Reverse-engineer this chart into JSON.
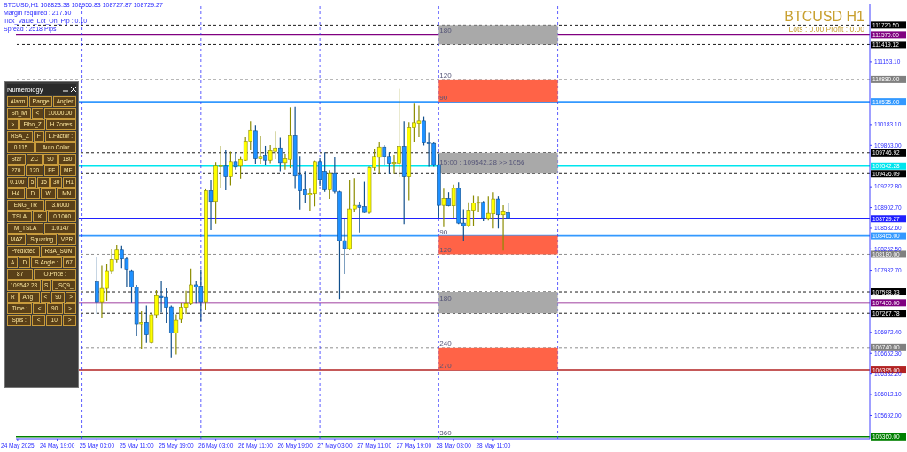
{
  "chart_data": [
    {
      "type": "candlestick",
      "title": "BTCUSD H1",
      "subtitle": "Lots : 0.00 Profit : 0.00",
      "annotations": [
        "BTCUSD,H1  108823.38 108956.83 108727.87 108729.27",
        "Margin required : 217.50",
        "Tick_Value_Lot_On_Pip : 0.10",
        "Spread : 2518  Pips",
        {
          "text": "180",
          "x": "2025-05-28T00:00",
          "y": 111570
        },
        {
          "text": "120",
          "x": "2025-05-28T00:00",
          "y": 110880
        },
        {
          "text": "90",
          "x": "2025-05-28T00:00",
          "y": 110535
        },
        {
          "text": "15:00 : 109542.28 >> 1056",
          "x": "2025-05-28T00:00",
          "y": 109542.28
        },
        {
          "text": "90",
          "x": "2025-05-28T00:00",
          "y": 108465
        },
        {
          "text": "120",
          "x": "2025-05-28T00:00",
          "y": 108180
        },
        {
          "text": "180",
          "x": "2025-05-28T00:00",
          "y": 107430
        },
        {
          "text": "240",
          "x": "2025-05-28T00:00",
          "y": 106740
        },
        {
          "text": "270",
          "x": "2025-05-28T00:00",
          "y": 106395
        },
        {
          "text": "360",
          "x": "2025-05-28T00:00",
          "y": 105360
        }
      ],
      "x": [
        "2025-05-25T03:00",
        "2025-05-25T04:00",
        "2025-05-25T05:00",
        "2025-05-25T06:00",
        "2025-05-25T07:00",
        "2025-05-25T08:00",
        "2025-05-25T09:00",
        "2025-05-25T10:00",
        "2025-05-25T11:00",
        "2025-05-25T12:00",
        "2025-05-25T13:00",
        "2025-05-25T14:00",
        "2025-05-25T15:00",
        "2025-05-25T16:00",
        "2025-05-25T17:00",
        "2025-05-25T18:00",
        "2025-05-25T19:00",
        "2025-05-25T20:00",
        "2025-05-25T21:00",
        "2025-05-25T22:00",
        "2025-05-25T23:00",
        "2025-05-26T00:00",
        "2025-05-26T01:00",
        "2025-05-26T02:00",
        "2025-05-26T03:00",
        "2025-05-26T04:00",
        "2025-05-26T05:00",
        "2025-05-26T06:00",
        "2025-05-26T07:00",
        "2025-05-26T08:00",
        "2025-05-26T09:00",
        "2025-05-26T10:00",
        "2025-05-26T11:00",
        "2025-05-26T12:00",
        "2025-05-26T13:00",
        "2025-05-26T14:00",
        "2025-05-26T15:00",
        "2025-05-26T16:00",
        "2025-05-26T17:00",
        "2025-05-26T18:00",
        "2025-05-26T19:00",
        "2025-05-26T20:00",
        "2025-05-26T21:00",
        "2025-05-26T22:00",
        "2025-05-26T23:00",
        "2025-05-27T00:00",
        "2025-05-27T01:00",
        "2025-05-27T02:00",
        "2025-05-27T03:00",
        "2025-05-27T04:00",
        "2025-05-27T05:00",
        "2025-05-27T06:00",
        "2025-05-27T07:00",
        "2025-05-27T08:00",
        "2025-05-27T09:00",
        "2025-05-27T10:00",
        "2025-05-27T11:00",
        "2025-05-27T12:00",
        "2025-05-27T13:00",
        "2025-05-27T14:00",
        "2025-05-27T15:00",
        "2025-05-27T16:00",
        "2025-05-27T17:00",
        "2025-05-27T18:00",
        "2025-05-27T19:00",
        "2025-05-27T20:00",
        "2025-05-27T21:00",
        "2025-05-27T22:00",
        "2025-05-27T23:00",
        "2025-05-28T00:00",
        "2025-05-28T01:00",
        "2025-05-28T02:00",
        "2025-05-28T03:00",
        "2025-05-28T04:00",
        "2025-05-28T05:00",
        "2025-05-28T06:00",
        "2025-05-28T07:00",
        "2025-05-28T08:00",
        "2025-05-28T09:00",
        "2025-05-28T10:00",
        "2025-05-28T11:00",
        "2025-05-28T12:00",
        "2025-05-28T13:00",
        "2025-05-28T14:00"
      ],
      "ohlc": [
        [
          107754,
          108130,
          107266,
          107447
        ],
        [
          107447,
          107994,
          107197,
          107652
        ],
        [
          107652,
          108017,
          107471,
          107926
        ],
        [
          107926,
          108253,
          107880,
          108099
        ],
        [
          108099,
          108313,
          108062,
          108244
        ],
        [
          108244,
          108303,
          107972,
          108108
        ],
        [
          108108,
          108130,
          107676,
          107949
        ],
        [
          107926,
          107935,
          107447,
          107676
        ],
        [
          107676,
          107699,
          106924,
          107106
        ],
        [
          107106,
          107289,
          106720,
          107129
        ],
        [
          107129,
          107379,
          106816,
          106934
        ],
        [
          106816,
          107266,
          106808,
          107243
        ],
        [
          107243,
          107617,
          107197,
          107539
        ],
        [
          107529,
          107754,
          107289,
          107507
        ],
        [
          107515,
          107644,
          107129,
          107357
        ],
        [
          107365,
          107379,
          106584,
          106961
        ],
        [
          106961,
          107243,
          106642,
          107160
        ],
        [
          107174,
          107425,
          107129,
          107357
        ],
        [
          107357,
          107607,
          107266,
          107416
        ],
        [
          107412,
          107949,
          107402,
          107708
        ],
        [
          107708,
          107754,
          107425,
          107676
        ],
        [
          107686,
          107935,
          107152,
          107447
        ],
        [
          107447,
          109177,
          107334,
          109164
        ],
        [
          109164,
          109314,
          108563,
          108996
        ],
        [
          108996,
          109596,
          108663,
          109542
        ],
        [
          109542,
          109846,
          109205,
          109550
        ],
        [
          109542,
          109778,
          109177,
          109382
        ],
        [
          109382,
          109755,
          109255,
          109610
        ],
        [
          109610,
          109746,
          109495,
          109528
        ],
        [
          109542,
          109686,
          109359,
          109645
        ],
        [
          109632,
          109983,
          109628,
          109928
        ],
        [
          109928,
          110225,
          109792,
          110096
        ],
        [
          110088,
          110170,
          109587,
          109655
        ],
        [
          109655,
          109997,
          109587,
          109692
        ],
        [
          109710,
          109846,
          109564,
          109632
        ],
        [
          109632,
          109860,
          109596,
          109778
        ],
        [
          109769,
          110074,
          109655,
          109823
        ],
        [
          109823,
          109974,
          109473,
          109596
        ],
        [
          109596,
          109723,
          109495,
          109655
        ],
        [
          109645,
          110442,
          109519,
          110010
        ],
        [
          110010,
          110451,
          109200,
          109392
        ],
        [
          109405,
          109692,
          108882,
          109164
        ],
        [
          109177,
          109460,
          108986,
          109100
        ],
        [
          109100,
          109187,
          108859,
          109123
        ],
        [
          109119,
          109618,
          108928,
          109610
        ],
        [
          109610,
          109655,
          109246,
          109337
        ],
        [
          109464,
          109746,
          109154,
          109177
        ],
        [
          109177,
          109473,
          109041,
          109427
        ],
        [
          109427,
          109678,
          109132,
          109154
        ],
        [
          109146,
          109154,
          107494,
          108390
        ],
        [
          108390,
          108710,
          107880,
          108268
        ],
        [
          108268,
          109323,
          108253,
          108882
        ],
        [
          108882,
          109351,
          108837,
          108936
        ],
        [
          108936,
          108983,
          108527,
          108905
        ],
        [
          108918,
          109291,
          108827,
          108827
        ],
        [
          108827,
          109528,
          108813,
          109519
        ],
        [
          109519,
          109792,
          109483,
          109692
        ],
        [
          109678,
          109915,
          109427,
          109837
        ],
        [
          109837,
          109860,
          109564,
          109692
        ],
        [
          109692,
          109746,
          109427,
          109587
        ],
        [
          109583,
          109710,
          109427,
          109601
        ],
        [
          109587,
          110725,
          109382,
          109846
        ],
        [
          109846,
          110225,
          108655,
          109382
        ],
        [
          109382,
          110211,
          109020,
          110133
        ],
        [
          110133,
          110498,
          109928,
          110211
        ],
        [
          110201,
          110466,
          109997,
          110238
        ],
        [
          110238,
          110302,
          109869,
          109901
        ],
        [
          109901,
          110056,
          109542,
          109892
        ],
        [
          109892,
          109915,
          109542,
          109564
        ],
        [
          109564,
          109723,
          108745,
          108936
        ],
        [
          108936,
          109187,
          108609,
          109041
        ],
        [
          109041,
          109132,
          108928,
          108928
        ],
        [
          108928,
          109246,
          108745,
          109200
        ],
        [
          109200,
          109282,
          108655,
          108663
        ],
        [
          108663,
          108868,
          108390,
          108622
        ],
        [
          108622,
          108973,
          108609,
          108860
        ],
        [
          108860,
          109073,
          108618,
          108973
        ],
        [
          108977,
          109064,
          108837,
          108982
        ],
        [
          108982,
          108996,
          108700,
          108731
        ],
        [
          108723,
          109064,
          108710,
          108813
        ],
        [
          108805,
          109132,
          108587,
          109032
        ],
        [
          109032,
          109064,
          108587,
          108791
        ],
        [
          108791,
          108928,
          108245,
          108837
        ],
        [
          108823.38,
          108956.83,
          108727.87,
          108729.27
        ]
      ],
      "colors": [
        "#1e90ff",
        "#ffff00",
        "#ffff00",
        "#ffff00",
        "#ffff00",
        "#1e90ff",
        "#1e90ff",
        "#1e90ff",
        "#1e90ff",
        "#ffff00",
        "#1e90ff",
        "#ffff00",
        "#ffff00",
        "#1e90ff",
        "#1e90ff",
        "#1e90ff",
        "#ffff00",
        "#ffff00",
        "#ffff00",
        "#ffff00",
        "#1e90ff",
        "#1e90ff",
        "#ffff00",
        "#1e90ff",
        "#ffff00",
        "#ffff00",
        "#1e90ff",
        "#ffff00",
        "#1e90ff",
        "#ffff00",
        "#ffff00",
        "#ffff00",
        "#1e90ff",
        "#ffff00",
        "#1e90ff",
        "#ffff00",
        "#ffff00",
        "#1e90ff",
        "#ffff00",
        "#ffff00",
        "#1e90ff",
        "#1e90ff",
        "#1e90ff",
        "#ffff00",
        "#ffff00",
        "#1e90ff",
        "#1e90ff",
        "#ffff00",
        "#1e90ff",
        "#1e90ff",
        "#1e90ff",
        "#ffff00",
        "#ffff00",
        "#1e90ff",
        "#1e90ff",
        "#ffff00",
        "#ffff00",
        "#ffff00",
        "#1e90ff",
        "#1e90ff",
        "#ffff00",
        "#ffff00",
        "#1e90ff",
        "#ffff00",
        "#ffff00",
        "#ffff00",
        "#1e90ff",
        "#1e90ff",
        "#1e90ff",
        "#1e90ff",
        "#ffff00",
        "#1e90ff",
        "#ffff00",
        "#1e90ff",
        "#1e90ff",
        "#ffff00",
        "#ffff00",
        "#ffff00",
        "#1e90ff",
        "#ffff00",
        "#ffff00",
        "#1e90ff",
        "#ffff00",
        "#1e90ff"
      ],
      "xlim": [
        "2025-05-24T10:40",
        "2025-05-31T15:00"
      ],
      "xticks": [
        {
          "value": "2025-05-24T11:00",
          "label": "24 May 2025"
        },
        {
          "value": "2025-05-24T19:00",
          "label": "24 May 19:00"
        },
        {
          "value": "2025-05-25T03:00",
          "label": "25 May 03:00"
        },
        {
          "value": "2025-05-25T11:00",
          "label": "25 May 11:00"
        },
        {
          "value": "2025-05-25T19:00",
          "label": "25 May 19:00"
        },
        {
          "value": "2025-05-26T03:00",
          "label": "26 May 03:00"
        },
        {
          "value": "2025-05-26T11:00",
          "label": "26 May 11:00"
        },
        {
          "value": "2025-05-26T19:00",
          "label": "26 May 19:00"
        },
        {
          "value": "2025-05-27T03:00",
          "label": "27 May 03:00"
        },
        {
          "value": "2025-05-27T11:00",
          "label": "27 May 11:00"
        },
        {
          "value": "2025-05-27T19:00",
          "label": "27 May 19:00"
        },
        {
          "value": "2025-05-28T03:00",
          "label": "28 May 03:00"
        },
        {
          "value": "2025-05-28T11:00",
          "label": "28 May 11:00"
        }
      ],
      "ylim": [
        105330,
        112040
      ],
      "yticks": [
        {
          "value": 111153.1,
          "label": "111153.10"
        },
        {
          "value": 110183.1,
          "label": "110183.10"
        },
        {
          "value": 109863,
          "label": "109863.00"
        },
        {
          "value": 109222.8,
          "label": "109222.80"
        },
        {
          "value": 108902.7,
          "label": "108902.70"
        },
        {
          "value": 108582.6,
          "label": "108582.60"
        },
        {
          "value": 108262.5,
          "label": "108262.50"
        },
        {
          "value": 107932.7,
          "label": "107932.70"
        },
        {
          "value": 106972.4,
          "label": "106972.40"
        },
        {
          "value": 106652.3,
          "label": "106652.30"
        },
        {
          "value": 106332.2,
          "label": "106332.20"
        },
        {
          "value": 106012.1,
          "label": "106012.10"
        },
        {
          "value": 105692,
          "label": "105692.00"
        }
      ],
      "ref_lines": [
        {
          "axis": "y",
          "value": 111720.5,
          "label": "111720.50",
          "color": "#000000",
          "line_style": "dashed"
        },
        {
          "axis": "y",
          "value": 111570,
          "label": "111570.00",
          "color": "#800080",
          "line_style": "solid"
        },
        {
          "axis": "y",
          "value": 111419.12,
          "label": "111419.12",
          "color": "#000000",
          "line_style": "dashed"
        },
        {
          "axis": "y",
          "value": 110880,
          "label": "110880.00",
          "color": "#808080",
          "line_style": "dashed"
        },
        {
          "axis": "y",
          "value": 110535,
          "label": "110535.00",
          "color": "#3399ff",
          "line_style": "solid"
        },
        {
          "axis": "y",
          "value": 109746.92,
          "label": "109746.92",
          "color": "#000000",
          "line_style": "dashed"
        },
        {
          "axis": "y",
          "value": 109542.28,
          "label": "109542.28",
          "color": "#00e5ee",
          "line_style": "solid"
        },
        {
          "axis": "y",
          "value": 109426.09,
          "label": "109426.09",
          "color": "#000000",
          "line_style": "dashed"
        },
        {
          "axis": "y",
          "value": 108729.27,
          "label": "108729.27",
          "color": "#2020ff",
          "line_style": "solid"
        },
        {
          "axis": "y",
          "value": 108465,
          "label": "108465.00",
          "color": "#3399ff",
          "line_style": "solid"
        },
        {
          "axis": "y",
          "value": 108180,
          "label": "108180.00",
          "color": "#808080",
          "line_style": "dashed"
        },
        {
          "axis": "y",
          "value": 107598.33,
          "label": "107598.33",
          "color": "#000000",
          "line_style": "dashed"
        },
        {
          "axis": "y",
          "value": 107430,
          "label": "107430.00",
          "color": "#800080",
          "line_style": "solid"
        },
        {
          "axis": "y",
          "value": 107267.78,
          "label": "107267.78",
          "color": "#000000",
          "line_style": "dashed"
        },
        {
          "axis": "y",
          "value": 106740,
          "label": "106740.00",
          "color": "#808080",
          "line_style": "dashed"
        },
        {
          "axis": "y",
          "value": 106395,
          "label": "106395.00",
          "color": "#b22222",
          "line_style": "solid"
        },
        {
          "axis": "y",
          "value": 105360,
          "label": "105360.00",
          "color": "#008000",
          "line_style": "solid"
        },
        {
          "axis": "x",
          "value": "2025-05-25T00:00",
          "color": "#3333ff",
          "line_style": "dashed"
        },
        {
          "axis": "x",
          "value": "2025-05-26T00:00",
          "color": "#3333ff",
          "line_style": "dashed"
        },
        {
          "axis": "x",
          "value": "2025-05-27T00:00",
          "color": "#3333ff",
          "line_style": "dashed"
        },
        {
          "axis": "x",
          "value": "2025-05-28T00:00",
          "color": "#3333ff",
          "line_style": "dashed"
        },
        {
          "axis": "x",
          "value": "2025-05-29T00:00",
          "color": "#3333ff",
          "line_style": "dashed"
        }
      ],
      "bands": [
        {
          "axis": "y",
          "from": 111419.12,
          "to": 111720.5,
          "color": "#a9a9a9"
        },
        {
          "axis": "y",
          "from": 110535,
          "to": 110880,
          "color": "#ff6347"
        },
        {
          "axis": "y",
          "from": 109426.09,
          "to": 109746.92,
          "color": "#a9a9a9"
        },
        {
          "axis": "y",
          "from": 108180,
          "to": 108465,
          "color": "#ff6347"
        },
        {
          "axis": "y",
          "from": 107267.78,
          "to": 107598.33,
          "color": "#a9a9a9"
        },
        {
          "axis": "y",
          "from": 106395,
          "to": 106740,
          "color": "#ff6347"
        }
      ]
    },
    {
      "type": "other",
      "title": "Numerology",
      "annotations": [
        "Alarm",
        "Range",
        "Angler",
        "Sh_lvl",
        "<",
        "10000.00",
        ">",
        "Fibo_Z",
        "H Zones",
        "RSA_Z",
        "F",
        "L.Factor :",
        "0.115",
        "Auto Color",
        "Star",
        "ZC",
        "90",
        "180",
        "270",
        "120",
        "FF",
        "MF",
        "0.100",
        "5",
        "15",
        "30",
        "H1",
        "H4",
        "D",
        "W",
        "MN",
        "ENG_TR",
        "3.6000",
        "TSLA",
        "K",
        "0.1000",
        "M_TSLA",
        "1.0147",
        "MAZ",
        "Squaring",
        "VPR",
        "Predicted",
        "RBA_SUN",
        "A",
        "D",
        "S.Angle :",
        "67",
        "87",
        "O.Price :",
        "109542.28",
        "S",
        "_SQ9_",
        "R",
        "Ang :",
        "<",
        "90",
        ">",
        "Time :",
        "<",
        "90",
        ">",
        "Spis :",
        "<",
        "10",
        ">"
      ]
    }
  ]
}
